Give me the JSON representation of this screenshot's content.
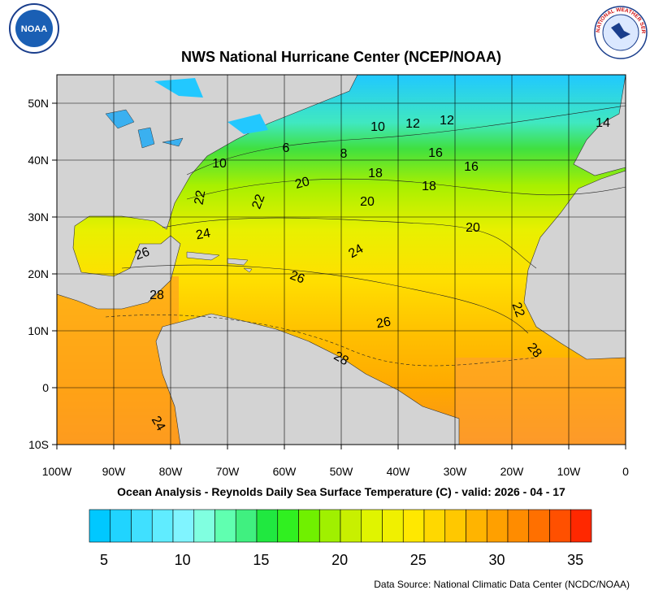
{
  "header": {
    "title": "NWS National Hurricane Center (NCEP/NOAA)",
    "noaa_logo": "NOAA",
    "nws_logo": "NATIONAL WEATHER SERVICE"
  },
  "map": {
    "lat_labels": [
      "50N",
      "40N",
      "30N",
      "20N",
      "10N",
      "0",
      "10S"
    ],
    "lon_labels": [
      "100W",
      "90W",
      "80W",
      "70W",
      "60W",
      "50W",
      "40W",
      "30W",
      "20W",
      "10W",
      "0"
    ],
    "contour_labels": [
      "10",
      "10",
      "12",
      "12",
      "14",
      "6",
      "8",
      "16",
      "16",
      "18",
      "18",
      "20",
      "20",
      "20",
      "22",
      "22",
      "22",
      "24",
      "24",
      "24",
      "26",
      "26",
      "26",
      "28",
      "28",
      "28"
    ]
  },
  "caption": "Ocean Analysis - Reynolds Daily Sea Surface Temperature (C) - valid: 2026 - 04 - 17",
  "colorbar": {
    "labels": [
      "5",
      "10",
      "15",
      "20",
      "25",
      "30",
      "35"
    ]
  },
  "source": "Data Source: National Climatic Data Center (NCDC/NOAA)"
}
